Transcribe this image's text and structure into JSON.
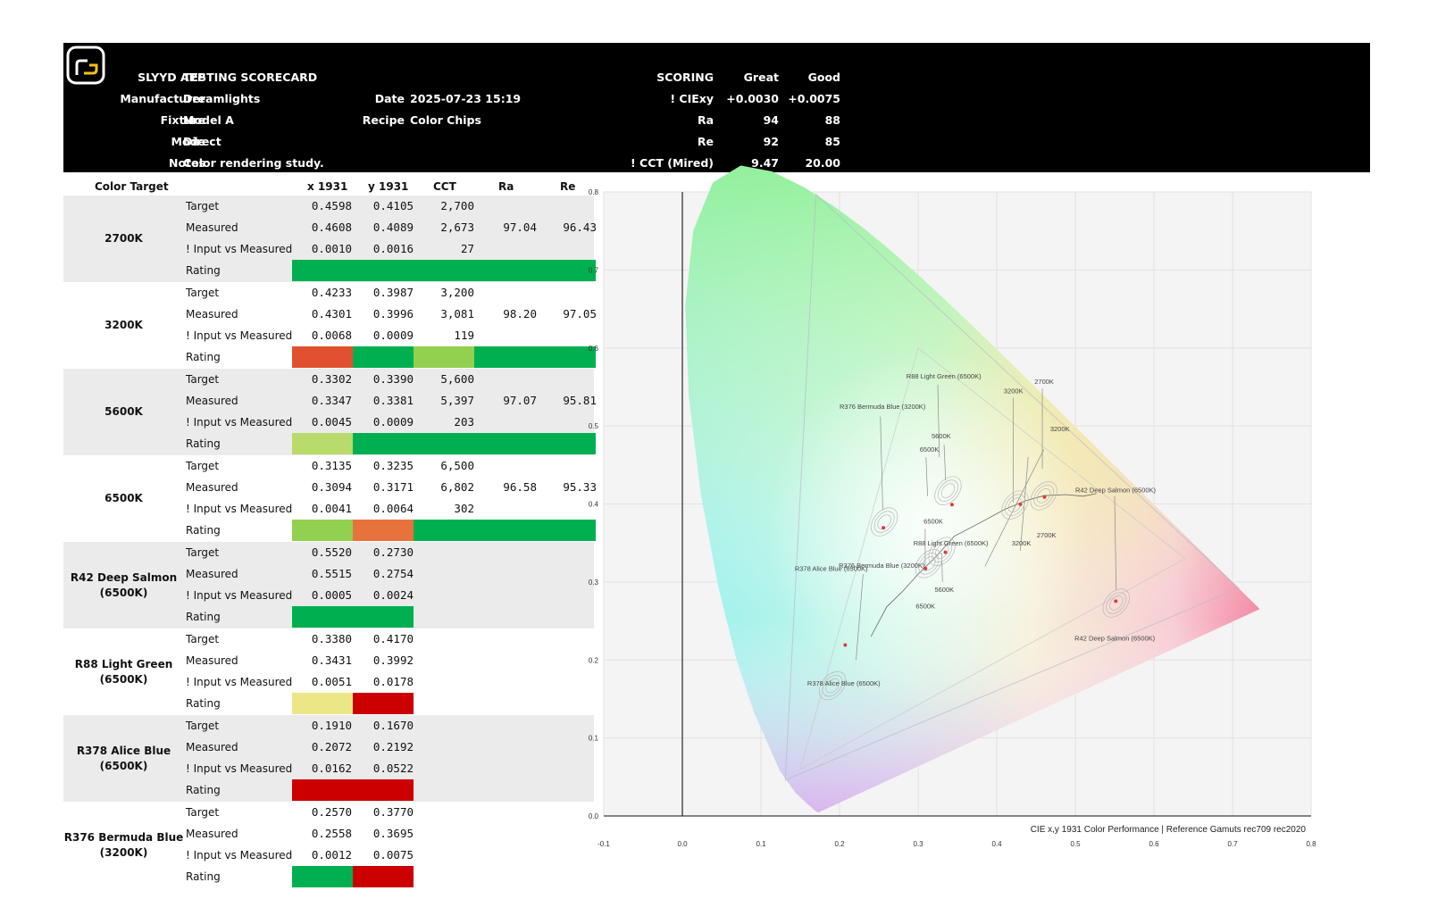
{
  "header": {
    "title_label": "SLYYD APP",
    "title_value": "TESTING SCORECARD",
    "fields": [
      {
        "label": "Manufacturer",
        "value": "Dreamlights"
      },
      {
        "label": "Fixture",
        "value": "Model A"
      },
      {
        "label": "Mode",
        "value": "Direct"
      },
      {
        "label": "Notes",
        "value": "Color rendering study."
      }
    ],
    "date_label": "Date",
    "date_value": "2025-07-23 15:19",
    "recipe_label": "Recipe",
    "recipe_value": "Color Chips",
    "scoring": {
      "title": "SCORING",
      "great_label": "Great",
      "good_label": "Good",
      "rows": [
        {
          "label": "! CIExy",
          "great": "+0.0030",
          "good": "+0.0075"
        },
        {
          "label": "Ra",
          "great": "94",
          "good": "88"
        },
        {
          "label": "Re",
          "great": "92",
          "good": "85"
        },
        {
          "label": "! CCT (Mired)",
          "great": "9.47",
          "good": "20.00"
        }
      ]
    }
  },
  "table": {
    "headers": {
      "target": "Color Target",
      "x": "x 1931",
      "y": "y 1931",
      "cct": "CCT",
      "ra": "Ra",
      "re": "Re"
    },
    "row_labels": [
      "Target",
      "Measured",
      "! Input vs Measured",
      "Rating"
    ],
    "groups": [
      {
        "name": "2700K",
        "target": [
          "0.4598",
          "0.4105",
          "2,700"
        ],
        "measured": [
          "0.4608",
          "0.4089",
          "2,673"
        ],
        "ra": "97.04",
        "re": "96.43",
        "delta": [
          "0.0010",
          "0.0016",
          "27"
        ],
        "rating": [
          {
            "span": 5,
            "color": "#00b050"
          }
        ]
      },
      {
        "name": "3200K",
        "target": [
          "0.4233",
          "0.3987",
          "3,200"
        ],
        "measured": [
          "0.4301",
          "0.3996",
          "3,081"
        ],
        "ra": "98.20",
        "re": "97.05",
        "delta": [
          "0.0068",
          "0.0009",
          "119"
        ],
        "rating": [
          {
            "span": 1,
            "color": "#e2512f"
          },
          {
            "span": 1,
            "color": "#00b050"
          },
          {
            "span": 1,
            "color": "#92d050"
          },
          {
            "span": 2,
            "color": "#00b050"
          }
        ]
      },
      {
        "name": "5600K",
        "target": [
          "0.3302",
          "0.3390",
          "5,600"
        ],
        "measured": [
          "0.3347",
          "0.3381",
          "5,397"
        ],
        "ra": "97.07",
        "re": "95.81",
        "delta": [
          "0.0045",
          "0.0009",
          "203"
        ],
        "rating": [
          {
            "span": 1,
            "color": "#b9db6c"
          },
          {
            "span": 4,
            "color": "#00b050"
          }
        ]
      },
      {
        "name": "6500K",
        "target": [
          "0.3135",
          "0.3235",
          "6,500"
        ],
        "measured": [
          "0.3094",
          "0.3171",
          "6,802"
        ],
        "ra": "96.58",
        "re": "95.33",
        "delta": [
          "0.0041",
          "0.0064",
          "302"
        ],
        "rating": [
          {
            "span": 1,
            "color": "#92d050"
          },
          {
            "span": 1,
            "color": "#e8723c"
          },
          {
            "span": 3,
            "color": "#00b050"
          }
        ]
      },
      {
        "name": "R42 Deep Salmon (6500K)",
        "target": [
          "0.5520",
          "0.2730",
          ""
        ],
        "measured": [
          "0.5515",
          "0.2754",
          ""
        ],
        "ra": "",
        "re": "",
        "delta": [
          "0.0005",
          "0.0024",
          ""
        ],
        "rating": [
          {
            "span": 2,
            "color": "#00b050"
          }
        ]
      },
      {
        "name": "R88 Light Green (6500K)",
        "target": [
          "0.3380",
          "0.4170",
          ""
        ],
        "measured": [
          "0.3431",
          "0.3992",
          ""
        ],
        "ra": "",
        "re": "",
        "delta": [
          "0.0051",
          "0.0178",
          ""
        ],
        "rating": [
          {
            "span": 1,
            "color": "#ece786"
          },
          {
            "span": 1,
            "color": "#cc0000"
          }
        ]
      },
      {
        "name": "R378 Alice Blue (6500K)",
        "target": [
          "0.1910",
          "0.1670",
          ""
        ],
        "measured": [
          "0.2072",
          "0.2192",
          ""
        ],
        "ra": "",
        "re": "",
        "delta": [
          "0.0162",
          "0.0522",
          ""
        ],
        "rating": [
          {
            "span": 2,
            "color": "#cc0000"
          }
        ]
      },
      {
        "name": "R376 Bermuda Blue (3200K)",
        "target": [
          "0.2570",
          "0.3770",
          ""
        ],
        "measured": [
          "0.2558",
          "0.3695",
          ""
        ],
        "ra": "",
        "re": "",
        "delta": [
          "0.0012",
          "0.0075",
          ""
        ],
        "rating": [
          {
            "span": 1,
            "color": "#00b050"
          },
          {
            "span": 1,
            "color": "#cc0000"
          }
        ]
      }
    ]
  },
  "chart_data": {
    "type": "scatter",
    "title": "CIE x,y 1931 Color Performance | Reference Gamuts rec709 rec2020",
    "xlim": [
      -0.1,
      0.8
    ],
    "ylim": [
      0.0,
      0.8
    ],
    "x_ticks": [
      "-0.1",
      "0.0",
      "0.1",
      "0.2",
      "0.3",
      "0.4",
      "0.5",
      "0.6",
      "0.7",
      "0.8"
    ],
    "y_ticks": [
      "0.0",
      "0.1",
      "0.2",
      "0.3",
      "0.4",
      "0.5",
      "0.6",
      "0.7",
      "0.8"
    ],
    "grid": true,
    "gamuts": {
      "rec709": [
        [
          0.64,
          0.33
        ],
        [
          0.3,
          0.6
        ],
        [
          0.15,
          0.06
        ]
      ],
      "rec2020": [
        [
          0.708,
          0.292
        ],
        [
          0.17,
          0.797
        ],
        [
          0.131,
          0.046
        ]
      ]
    },
    "points": [
      {
        "label": "2700K",
        "x": 0.4608,
        "y": 0.4089,
        "tx": 0.4598,
        "ty": 0.4105
      },
      {
        "label": "3200K",
        "x": 0.4301,
        "y": 0.3996,
        "tx": 0.4233,
        "ty": 0.3987
      },
      {
        "label": "5600K",
        "x": 0.3347,
        "y": 0.3381,
        "tx": 0.3302,
        "ty": 0.339
      },
      {
        "label": "6500K",
        "x": 0.3094,
        "y": 0.3171,
        "tx": 0.3135,
        "ty": 0.3235
      },
      {
        "label": "R42 Deep Salmon (6500K)",
        "x": 0.5515,
        "y": 0.2754,
        "tx": 0.552,
        "ty": 0.273
      },
      {
        "label": "R88 Light Green (6500K)",
        "x": 0.3431,
        "y": 0.3992,
        "tx": 0.338,
        "ty": 0.417
      },
      {
        "label": "R378 Alice Blue (6500K)",
        "x": 0.2072,
        "y": 0.2192,
        "tx": 0.191,
        "ty": 0.167
      },
      {
        "label": "R376 Bermuda Blue (3200K)",
        "x": 0.2558,
        "y": 0.3695,
        "tx": 0.257,
        "ty": 0.377
      }
    ],
    "annotations": [
      {
        "text": "R88 Light Green (6500K)",
        "x": 0.285,
        "y": 0.561
      },
      {
        "text": "2700K",
        "x": 0.448,
        "y": 0.554
      },
      {
        "text": "3200K",
        "x": 0.409,
        "y": 0.542
      },
      {
        "text": "R376 Bermuda Blue (3200K)",
        "x": 0.2,
        "y": 0.522
      },
      {
        "text": "3200K",
        "x": 0.468,
        "y": 0.493
      },
      {
        "text": "5600K",
        "x": 0.317,
        "y": 0.484
      },
      {
        "text": "6500K",
        "x": 0.302,
        "y": 0.467
      },
      {
        "text": "R42 Deep Salmon (6500K)",
        "x": 0.5,
        "y": 0.415
      },
      {
        "text": "6500K",
        "x": 0.307,
        "y": 0.375
      },
      {
        "text": "R88 Light Green (6500K)",
        "x": 0.294,
        "y": 0.347
      },
      {
        "text": "3200K",
        "x": 0.419,
        "y": 0.347
      },
      {
        "text": "2700K",
        "x": 0.451,
        "y": 0.357
      },
      {
        "text": "R376 Bermuda Blue (3200K)",
        "x": 0.199,
        "y": 0.318
      },
      {
        "text": "R378 Alice Blue (6500K)",
        "x": 0.143,
        "y": 0.314
      },
      {
        "text": "5600K",
        "x": 0.321,
        "y": 0.287
      },
      {
        "text": "6500K",
        "x": 0.297,
        "y": 0.266
      },
      {
        "text": "R42 Deep Salmon (6500K)",
        "x": 0.499,
        "y": 0.225
      },
      {
        "text": "R378 Alice Blue (6500K)",
        "x": 0.159,
        "y": 0.167
      }
    ]
  }
}
